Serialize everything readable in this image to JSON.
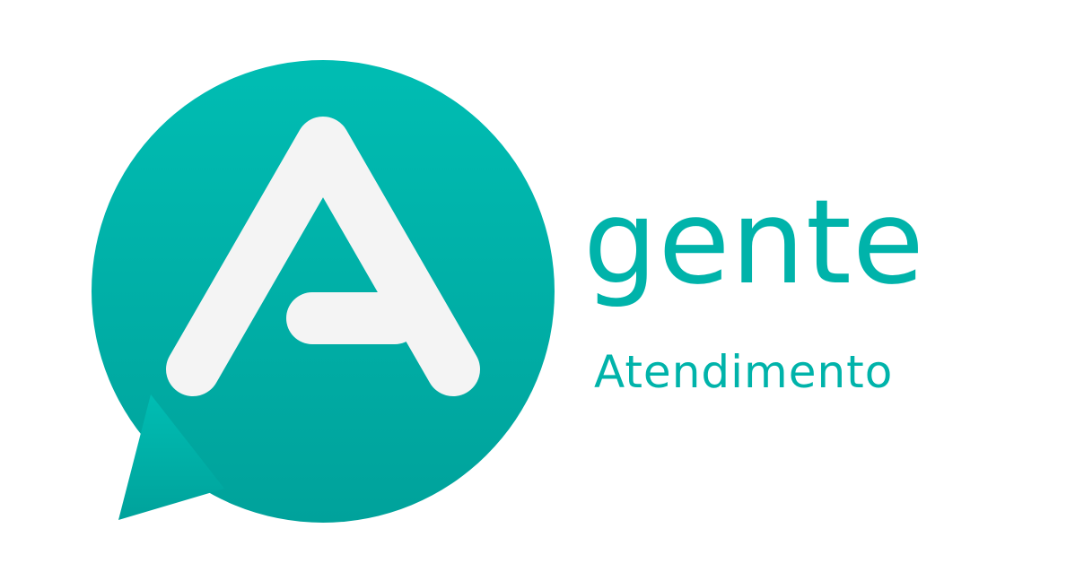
{
  "logo": {
    "icon": "speech-bubble-letter-a-icon",
    "brand_name": "gente",
    "tagline": "Atendimento"
  },
  "colors": {
    "bubble_top": "#00BDB3",
    "bubble_bottom": "#00A29B",
    "letter": "#F4F4F4",
    "text": "#00B3AA",
    "background": "#FFFFFF"
  }
}
